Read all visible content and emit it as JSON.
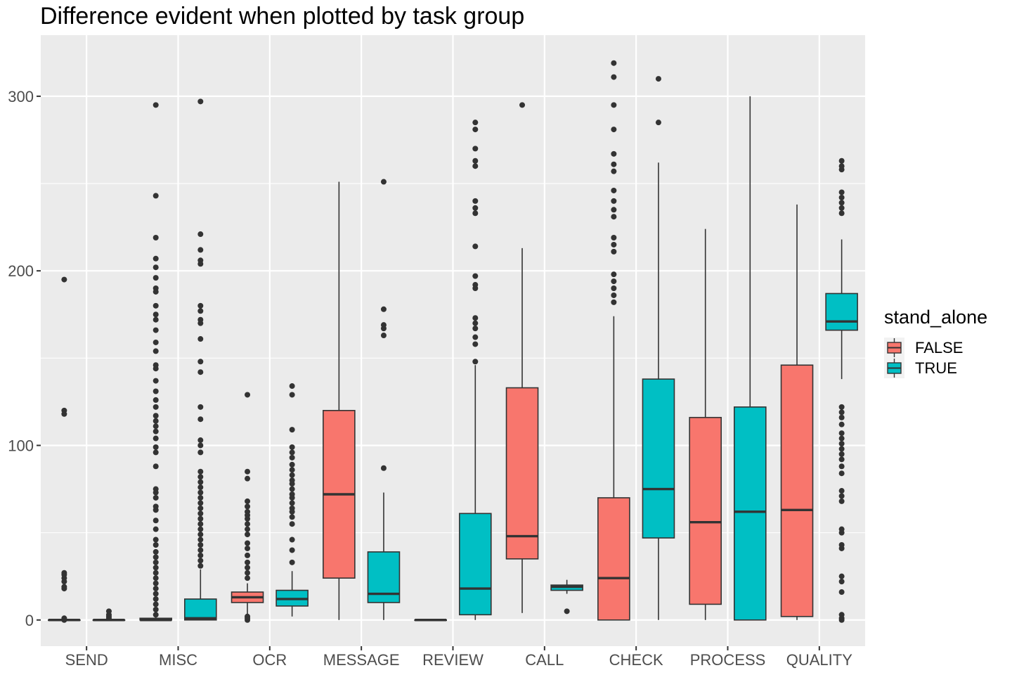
{
  "chart_data": {
    "type": "box",
    "title": "Difference evident when plotted by task group",
    "xlabel": "",
    "ylabel": "",
    "ylim": [
      -15,
      335
    ],
    "y_ticks": [
      0,
      100,
      200,
      300
    ],
    "grid": true,
    "legend": {
      "title": "stand_alone",
      "position": "right",
      "entries": [
        {
          "label": "FALSE",
          "color": "#F8766D"
        },
        {
          "label": "TRUE",
          "color": "#00BFC4"
        }
      ]
    },
    "categories": [
      "SEND",
      "MISC",
      "OCR",
      "MESSAGE",
      "REVIEW",
      "CALL",
      "CHECK",
      "PROCESS",
      "QUALITY"
    ],
    "series": [
      {
        "name": "FALSE",
        "color": "#F8766D",
        "boxes": [
          {
            "category": "SEND",
            "min": 0,
            "q1": 0,
            "median": 0,
            "q3": 0,
            "max": 0,
            "outliers": [
              195,
              120,
              118,
              27,
              26,
              24,
              22,
              19,
              18,
              1,
              0
            ]
          },
          {
            "category": "MISC",
            "min": 0,
            "q1": 0,
            "median": 0,
            "q3": 1,
            "max": 2,
            "outliers": [
              295,
              243,
              219,
              207,
              202,
              196,
              190,
              188,
              180,
              175,
              172,
              166,
              159,
              154,
              146,
              144,
              137,
              131,
              126,
              122,
              117,
              114,
              111,
              108,
              104,
              99,
              96,
              88,
              75,
              73,
              70,
              65,
              63,
              57,
              52,
              46,
              43,
              39,
              36,
              33,
              30,
              27,
              24,
              21,
              18,
              15,
              12,
              9,
              6,
              3
            ]
          },
          {
            "category": "OCR",
            "min": 3,
            "q1": 10,
            "median": 13,
            "q3": 16,
            "max": 21,
            "outliers": [
              129,
              85,
              81,
              68,
              65,
              62,
              60,
              58,
              55,
              52,
              49,
              44,
              41,
              37,
              33,
              30,
              27,
              24,
              2,
              1,
              0
            ]
          },
          {
            "category": "MESSAGE",
            "min": 0,
            "q1": 24,
            "median": 72,
            "q3": 120,
            "max": 251,
            "outliers": []
          },
          {
            "category": "REVIEW",
            "min": 0,
            "q1": 0,
            "median": 0,
            "q3": 0,
            "max": 0,
            "outliers": []
          },
          {
            "category": "CALL",
            "min": 4,
            "q1": 35,
            "median": 48,
            "q3": 133,
            "max": 213,
            "outliers": [
              295
            ]
          },
          {
            "category": "CHECK",
            "min": 0,
            "q1": 0,
            "median": 24,
            "q3": 70,
            "max": 174,
            "outliers": [
              319,
              311,
              295,
              281,
              267,
              261,
              257,
              246,
              240,
              235,
              231,
              219,
              215,
              211,
              198,
              194,
              190,
              186,
              182
            ]
          },
          {
            "category": "PROCESS",
            "min": 0,
            "q1": 9,
            "median": 56,
            "q3": 116,
            "max": 224,
            "outliers": []
          },
          {
            "category": "QUALITY",
            "min": 0,
            "q1": 2,
            "median": 63,
            "q3": 146,
            "max": 238,
            "outliers": []
          }
        ]
      },
      {
        "name": "TRUE",
        "color": "#00BFC4",
        "boxes": [
          {
            "category": "SEND",
            "min": 0,
            "q1": 0,
            "median": 0,
            "q3": 0,
            "max": 0,
            "outliers": [
              5,
              3,
              2,
              1
            ]
          },
          {
            "category": "MISC",
            "min": 0,
            "q1": 0,
            "median": 1,
            "q3": 12,
            "max": 29,
            "outliers": [
              297,
              221,
              212,
              206,
              204,
              180,
              177,
              172,
              170,
              161,
              148,
              142,
              122,
              115,
              103,
              100,
              96,
              85,
              82,
              79,
              76,
              73,
              70,
              67,
              64,
              61,
              58,
              55,
              52,
              49,
              46,
              43,
              40,
              37,
              34,
              31
            ]
          },
          {
            "category": "OCR",
            "min": 2,
            "q1": 8,
            "median": 12,
            "q3": 17,
            "max": 28,
            "outliers": [
              134,
              129,
              109,
              99,
              96,
              93,
              89,
              86,
              83,
              80,
              78,
              75,
              72,
              70,
              67,
              64,
              62,
              59,
              55,
              46,
              40,
              33
            ]
          },
          {
            "category": "MESSAGE",
            "min": 0,
            "q1": 10,
            "median": 15,
            "q3": 39,
            "max": 73,
            "outliers": [
              251,
              178,
              169,
              167,
              163,
              87
            ]
          },
          {
            "category": "REVIEW",
            "min": 0,
            "q1": 3,
            "median": 18,
            "q3": 61,
            "max": 146,
            "outliers": [
              285,
              281,
              270,
              263,
              260,
              240,
              236,
              233,
              214,
              197,
              192,
              190,
              173,
              170,
              167,
              162,
              158,
              148
            ]
          },
          {
            "category": "CALL",
            "min": 15,
            "q1": 17,
            "median": 19,
            "q3": 20,
            "max": 23,
            "outliers": [
              5
            ]
          },
          {
            "category": "CHECK",
            "min": 0,
            "q1": 47,
            "median": 75,
            "q3": 138,
            "max": 262,
            "outliers": [
              310,
              285
            ]
          },
          {
            "category": "PROCESS",
            "min": 0,
            "q1": 0,
            "median": 62,
            "q3": 122,
            "max": 300,
            "outliers": []
          },
          {
            "category": "QUALITY",
            "min": 138,
            "q1": 166,
            "median": 171,
            "q3": 187,
            "max": 218,
            "outliers": [
              263,
              260,
              258,
              245,
              242,
              239,
              236,
              233,
              122,
              119,
              116,
              112,
              107,
              104,
              101,
              98,
              95,
              92,
              88,
              84,
              74,
              71,
              68,
              52,
              50,
              43,
              41,
              25,
              22,
              16,
              3,
              1,
              0
            ]
          }
        ]
      }
    ]
  }
}
